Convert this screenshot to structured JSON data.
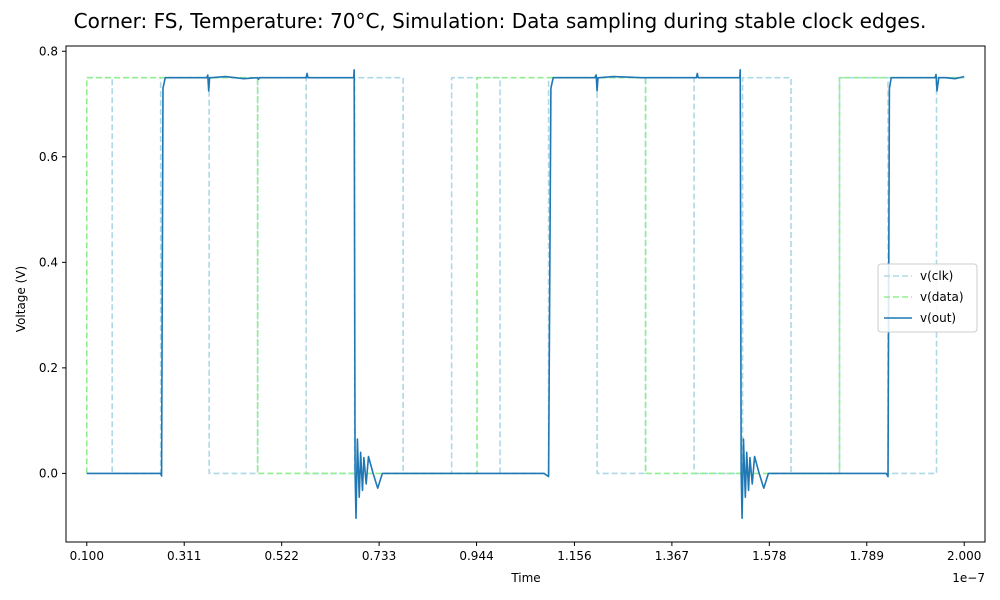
{
  "chart_data": {
    "type": "line",
    "title": "Corner: FS, Temperature: 70°C, Simulation: Data sampling during stable clock edges.",
    "xlabel": "Time",
    "ylabel": "Voltage (V)",
    "x_offset_label": "1e−7",
    "xlim": [
      0.055,
      2.045
    ],
    "ylim": [
      -0.13,
      0.81
    ],
    "x_ticks": [
      0.1,
      0.311,
      0.522,
      0.733,
      0.944,
      1.156,
      1.367,
      1.578,
      1.789,
      2.0
    ],
    "x_tick_labels": [
      "0.100",
      "0.311",
      "0.522",
      "0.733",
      "0.944",
      "1.156",
      "1.367",
      "1.578",
      "1.789",
      "2.000"
    ],
    "y_ticks": [
      0.0,
      0.2,
      0.4,
      0.6,
      0.8
    ],
    "y_tick_labels": [
      "0.0",
      "0.2",
      "0.4",
      "0.6",
      "0.8"
    ],
    "grid": false,
    "legend_position": "center-right",
    "series": [
      {
        "name": "v(clk)",
        "color": "#add8e6",
        "style": "dashed",
        "x": [
          0.1,
          0.155,
          0.155,
          0.26,
          0.26,
          0.365,
          0.365,
          0.47,
          0.47,
          0.575,
          0.575,
          0.68,
          0.68,
          0.785,
          0.785,
          0.89,
          0.89,
          0.995,
          0.995,
          1.1,
          1.1,
          1.205,
          1.205,
          1.31,
          1.31,
          1.415,
          1.415,
          1.52,
          1.52,
          1.625,
          1.625,
          1.73,
          1.73,
          1.835,
          1.835,
          1.94,
          1.94,
          2.0
        ],
        "values": [
          0.75,
          0.75,
          0,
          0,
          0.75,
          0.75,
          0,
          0,
          0.75,
          0.75,
          0,
          0,
          0.75,
          0.75,
          0,
          0,
          0.75,
          0.75,
          0,
          0,
          0.75,
          0.75,
          0,
          0,
          0.75,
          0.75,
          0,
          0,
          0.75,
          0.75,
          0,
          0,
          0.75,
          0.75,
          0,
          0,
          0.75,
          0.75
        ]
      },
      {
        "name": "v(data)",
        "color": "#90ee90",
        "style": "dashed",
        "x": [
          0.1,
          0.1,
          0.47,
          0.47,
          0.945,
          0.945,
          1.31,
          1.31,
          1.73,
          1.73,
          2.0
        ],
        "values": [
          0.0,
          0.75,
          0.75,
          0.0,
          0.0,
          0.75,
          0.75,
          0.0,
          0.0,
          0.75,
          0.75
        ]
      },
      {
        "name": "v(out)",
        "color": "#1f77b4",
        "style": "solid",
        "x": [
          0.1,
          0.2,
          0.26,
          0.262,
          0.265,
          0.27,
          0.3,
          0.36,
          0.362,
          0.364,
          0.366,
          0.37,
          0.4,
          0.44,
          0.47,
          0.472,
          0.474,
          0.5,
          0.575,
          0.577,
          0.579,
          0.6,
          0.678,
          0.679,
          0.681,
          0.683,
          0.686,
          0.69,
          0.693,
          0.697,
          0.7,
          0.705,
          0.71,
          0.72,
          0.73,
          0.74,
          0.785,
          0.787,
          0.795,
          0.85,
          0.9,
          0.95,
          1.0,
          1.09,
          1.1,
          1.105,
          1.11,
          1.14,
          1.2,
          1.203,
          1.205,
          1.207,
          1.21,
          1.24,
          1.3,
          1.4,
          1.42,
          1.422,
          1.424,
          1.43,
          1.514,
          1.515,
          1.517,
          1.519,
          1.522,
          1.526,
          1.529,
          1.533,
          1.536,
          1.541,
          1.546,
          1.556,
          1.566,
          1.576,
          1.625,
          1.63,
          1.7,
          1.8,
          1.831,
          1.835,
          1.838,
          1.842,
          1.87,
          1.9,
          1.937,
          1.939,
          1.941,
          1.945,
          1.96,
          1.98,
          2.0
        ],
        "values": [
          0.0,
          0.0,
          0.0,
          -0.005,
          0.73,
          0.75,
          0.75,
          0.75,
          0.755,
          0.725,
          0.75,
          0.75,
          0.752,
          0.748,
          0.75,
          0.747,
          0.75,
          0.75,
          0.75,
          0.758,
          0.75,
          0.75,
          0.75,
          0.765,
          0.0,
          -0.085,
          0.065,
          -0.045,
          0.04,
          -0.032,
          0.03,
          -0.02,
          0.032,
          0.0,
          -0.028,
          0.0,
          0.0,
          0.0,
          0.0,
          0.0,
          0.0,
          0.0,
          0.0,
          0.0,
          -0.006,
          0.73,
          0.75,
          0.75,
          0.75,
          0.755,
          0.725,
          0.75,
          0.75,
          0.752,
          0.75,
          0.75,
          0.75,
          0.758,
          0.75,
          0.75,
          0.75,
          0.765,
          0.0,
          -0.085,
          0.065,
          -0.045,
          0.04,
          -0.032,
          0.03,
          -0.02,
          0.032,
          0.0,
          -0.028,
          0.0,
          0.0,
          0.0,
          0.0,
          0.0,
          0.0,
          -0.006,
          0.73,
          0.75,
          0.75,
          0.75,
          0.75,
          0.756,
          0.725,
          0.75,
          0.75,
          0.748,
          0.752
        ]
      }
    ]
  }
}
